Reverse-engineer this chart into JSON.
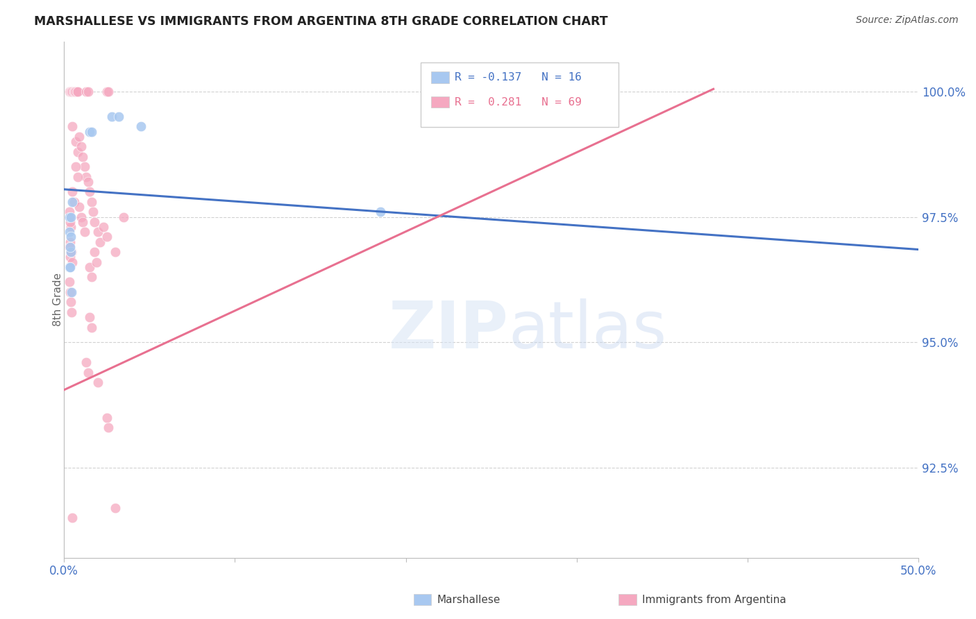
{
  "title": "MARSHALLESE VS IMMIGRANTS FROM ARGENTINA 8TH GRADE CORRELATION CHART",
  "source": "Source: ZipAtlas.com",
  "ylabel": "8th Grade",
  "xlim": [
    0.0,
    50.0
  ],
  "ylim": [
    90.7,
    101.0
  ],
  "yticks": [
    92.5,
    95.0,
    97.5,
    100.0
  ],
  "ytick_labels": [
    "92.5%",
    "95.0%",
    "97.5%",
    "100.0%"
  ],
  "blue_R": "-0.137",
  "blue_N": "16",
  "pink_R": "0.281",
  "pink_N": "69",
  "blue_color": "#A8C8F0",
  "pink_color": "#F5A8C0",
  "blue_line_color": "#4472C4",
  "pink_line_color": "#E87090",
  "legend_blue_label": "Marshallese",
  "legend_pink_label": "Immigrants from Argentina",
  "watermark_zip": "ZIP",
  "watermark_atlas": "atlas",
  "blue_line_x": [
    0.0,
    50.0
  ],
  "blue_line_y": [
    98.05,
    96.85
  ],
  "pink_line_x": [
    0.0,
    38.0
  ],
  "pink_line_y": [
    94.05,
    100.05
  ],
  "blue_dots": [
    [
      0.3,
      97.5
    ],
    [
      0.4,
      97.5
    ],
    [
      0.4,
      96.8
    ],
    [
      0.5,
      97.8
    ],
    [
      1.5,
      99.2
    ],
    [
      1.6,
      99.2
    ],
    [
      2.8,
      99.5
    ],
    [
      3.2,
      99.5
    ],
    [
      4.5,
      99.3
    ],
    [
      0.3,
      97.2
    ],
    [
      0.35,
      96.9
    ],
    [
      0.4,
      97.1
    ],
    [
      0.3,
      96.5
    ],
    [
      0.35,
      96.5
    ],
    [
      0.45,
      96.0
    ],
    [
      18.5,
      97.6
    ]
  ],
  "pink_dots": [
    [
      0.3,
      100.0
    ],
    [
      0.35,
      100.0
    ],
    [
      0.4,
      100.0
    ],
    [
      0.45,
      100.0
    ],
    [
      0.5,
      100.0
    ],
    [
      0.55,
      100.0
    ],
    [
      0.6,
      100.0
    ],
    [
      0.65,
      100.0
    ],
    [
      0.7,
      100.0
    ],
    [
      0.75,
      100.0
    ],
    [
      0.8,
      100.0
    ],
    [
      1.3,
      100.0
    ],
    [
      1.4,
      100.0
    ],
    [
      2.5,
      100.0
    ],
    [
      2.6,
      100.0
    ],
    [
      0.5,
      99.3
    ],
    [
      0.7,
      99.0
    ],
    [
      0.8,
      98.8
    ],
    [
      0.9,
      99.1
    ],
    [
      1.0,
      98.9
    ],
    [
      1.1,
      98.7
    ],
    [
      1.2,
      98.5
    ],
    [
      1.3,
      98.3
    ],
    [
      1.4,
      98.2
    ],
    [
      0.7,
      98.5
    ],
    [
      0.8,
      98.3
    ],
    [
      0.5,
      98.0
    ],
    [
      0.6,
      97.8
    ],
    [
      0.9,
      97.7
    ],
    [
      1.0,
      97.5
    ],
    [
      1.1,
      97.4
    ],
    [
      1.2,
      97.2
    ],
    [
      1.5,
      98.0
    ],
    [
      1.6,
      97.8
    ],
    [
      0.35,
      97.5
    ],
    [
      0.4,
      97.3
    ],
    [
      0.35,
      97.0
    ],
    [
      0.45,
      96.8
    ],
    [
      1.7,
      97.6
    ],
    [
      1.8,
      97.4
    ],
    [
      2.0,
      97.2
    ],
    [
      2.1,
      97.0
    ],
    [
      2.3,
      97.3
    ],
    [
      2.5,
      97.1
    ],
    [
      3.5,
      97.5
    ],
    [
      0.3,
      97.6
    ],
    [
      0.35,
      97.4
    ],
    [
      0.3,
      96.9
    ],
    [
      0.35,
      96.7
    ],
    [
      0.4,
      96.8
    ],
    [
      0.5,
      96.6
    ],
    [
      1.5,
      96.5
    ],
    [
      1.6,
      96.3
    ],
    [
      1.8,
      96.8
    ],
    [
      1.9,
      96.6
    ],
    [
      3.0,
      96.8
    ],
    [
      0.3,
      96.2
    ],
    [
      0.35,
      96.0
    ],
    [
      0.4,
      95.8
    ],
    [
      0.45,
      95.6
    ],
    [
      1.5,
      95.5
    ],
    [
      1.6,
      95.3
    ],
    [
      1.3,
      94.6
    ],
    [
      1.4,
      94.4
    ],
    [
      2.0,
      94.2
    ],
    [
      2.5,
      93.5
    ],
    [
      2.6,
      93.3
    ],
    [
      3.0,
      91.7
    ],
    [
      0.5,
      91.5
    ]
  ]
}
